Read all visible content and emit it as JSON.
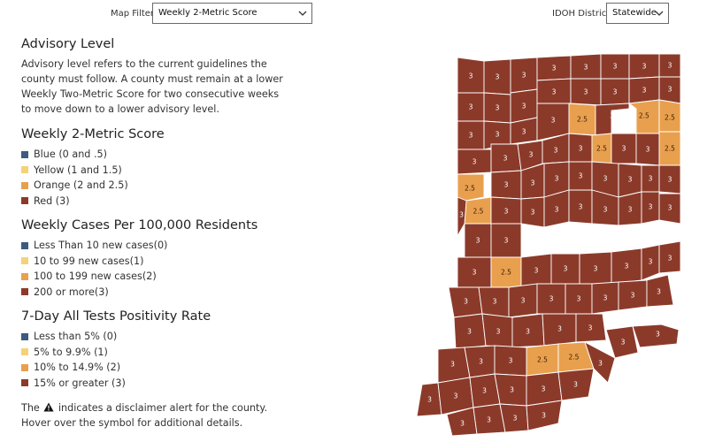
{
  "filters": {
    "map_filter_label": "Map Filter",
    "map_filter_value": "Weekly 2-Metric Score",
    "district_label": "IDOH District",
    "district_value": "Statewide"
  },
  "colors": {
    "blue": "#3d5a80",
    "yellow": "#f5d27a",
    "orange": "#e8a04f",
    "red": "#8b3a2a",
    "border": "#ffffff"
  },
  "advisory": {
    "title": "Advisory Level",
    "text": "Advisory level refers to the current guidelines the county must follow. A county must remain at a lower Weekly Two-Metric Score for two consecutive weeks to move down to a lower advisory level."
  },
  "score": {
    "title": "Weekly 2-Metric Score",
    "items": [
      {
        "label": "Blue (0 and .5)",
        "color": "#3d5a80"
      },
      {
        "label": "Yellow (1 and 1.5)",
        "color": "#f5d27a"
      },
      {
        "label": "Orange (2 and 2.5)",
        "color": "#e8a04f"
      },
      {
        "label": "Red (3)",
        "color": "#8b3a2a"
      }
    ]
  },
  "cases": {
    "title": "Weekly Cases Per 100,000 Residents",
    "items": [
      {
        "label": "Less Than 10 new cases(0)",
        "color": "#3d5a80"
      },
      {
        "label": "10 to 99 new cases(1)",
        "color": "#f5d27a"
      },
      {
        "label": "100 to 199 new cases(2)",
        "color": "#e8a04f"
      },
      {
        "label": "200 or more(3)",
        "color": "#8b3a2a"
      }
    ]
  },
  "positivity": {
    "title": "7-Day All Tests Positivity Rate",
    "items": [
      {
        "label": "Less than 5% (0)",
        "color": "#3d5a80"
      },
      {
        "label": "5% to 9.9% (1)",
        "color": "#f5d27a"
      },
      {
        "label": "10% to 14.9% (2)",
        "color": "#e8a04f"
      },
      {
        "label": "15% or greater (3)",
        "color": "#8b3a2a"
      }
    ]
  },
  "note": {
    "before": "The",
    "after": "indicates a disclaimer alert for the county.",
    "line2": "Hover over the symbol for additional details.",
    "icon": "warning-triangle-icon"
  },
  "map": {
    "labels_orange": [
      "2.5",
      "2.5",
      "2.5",
      "2.5",
      "2.5",
      "2.5",
      "2.5",
      "2.5",
      "2.5",
      "2.5",
      "2.5"
    ],
    "labels_red_value": "3",
    "red_label_count": 81
  }
}
